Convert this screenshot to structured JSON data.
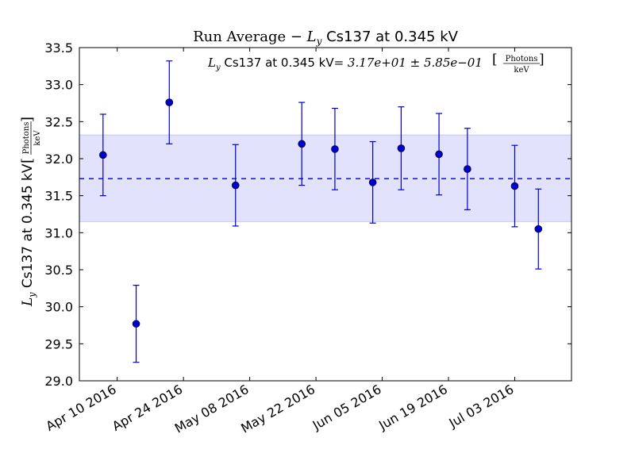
{
  "chart_data": {
    "type": "scatter",
    "title_prefix": "Run Average  −  ",
    "title_var": "L",
    "title_sub": "y",
    "title_suffix": " Cs137 at 0.345 kV",
    "ylabel_var": "L",
    "ylabel_sub": "y",
    "ylabel_text": " Cs137 at 0.345 kV ",
    "unit_numerator": "Photons",
    "unit_denominator": "keV",
    "annotation_var": "L",
    "annotation_sub": "y",
    "annotation_text": " Cs137 at 0.345 kV",
    "annotation_value": "= 3.17e+01 ± 5.85e−01 ",
    "mean": 31.73,
    "band": [
      31.15,
      32.32
    ],
    "xlim": [
      "2016-04-02",
      "2016-07-15"
    ],
    "ylim": [
      29.0,
      33.5
    ],
    "yticks": [
      "29.0",
      "29.5",
      "30.0",
      "30.5",
      "31.0",
      "31.5",
      "32.0",
      "32.5",
      "33.0",
      "33.5"
    ],
    "xticks": [
      {
        "date": "2016-04-10",
        "label": "Apr 10 2016"
      },
      {
        "date": "2016-04-24",
        "label": "Apr 24 2016"
      },
      {
        "date": "2016-05-08",
        "label": "May 08 2016"
      },
      {
        "date": "2016-05-22",
        "label": "May 22 2016"
      },
      {
        "date": "2016-06-05",
        "label": "Jun 05 2016"
      },
      {
        "date": "2016-06-19",
        "label": "Jun 19 2016"
      },
      {
        "date": "2016-07-03",
        "label": "Jul 03 2016"
      }
    ],
    "points": [
      {
        "x": "2016-04-07",
        "y": 32.05,
        "err": 0.55
      },
      {
        "x": "2016-04-14",
        "y": 29.77,
        "err": 0.52
      },
      {
        "x": "2016-04-21",
        "y": 32.76,
        "err": 0.56
      },
      {
        "x": "2016-05-05",
        "y": 31.64,
        "err": 0.55
      },
      {
        "x": "2016-05-19",
        "y": 32.2,
        "err": 0.56
      },
      {
        "x": "2016-05-26",
        "y": 32.13,
        "err": 0.55
      },
      {
        "x": "2016-06-03",
        "y": 31.68,
        "err": 0.55
      },
      {
        "x": "2016-06-09",
        "y": 32.14,
        "err": 0.56
      },
      {
        "x": "2016-06-17",
        "y": 32.06,
        "err": 0.55
      },
      {
        "x": "2016-06-23",
        "y": 31.86,
        "err": 0.55
      },
      {
        "x": "2016-07-030",
        "y": 31.63,
        "err": 0.55
      },
      {
        "x": "2016-07-08",
        "y": 31.05,
        "err": 0.54
      }
    ],
    "colors": {
      "marker": "#0000cc",
      "band": "#e2e2fc",
      "band_edge": "#c8c8f4",
      "mean_line": "#0000cc"
    }
  }
}
